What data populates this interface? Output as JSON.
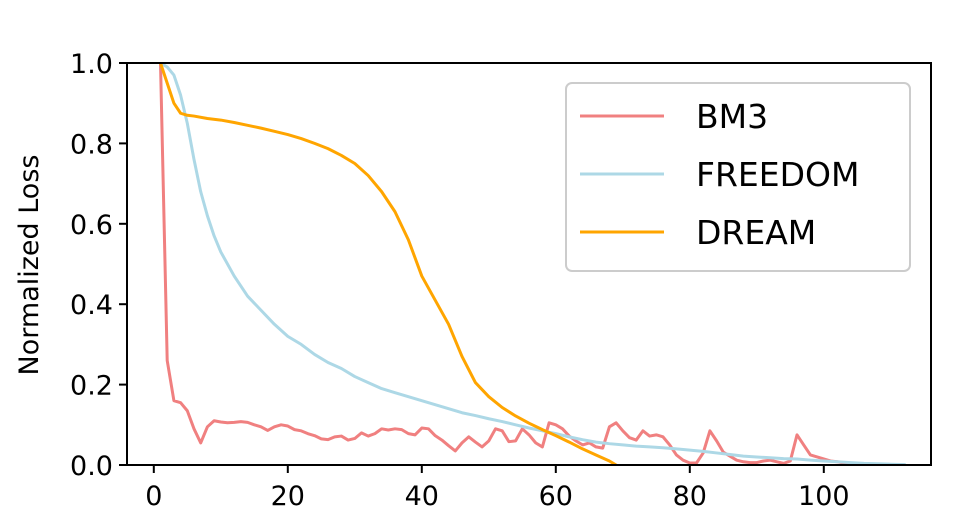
{
  "colors": {
    "BM3": "#f08080",
    "FREEDOM": "#add8e6",
    "DREAM": "#ffa500",
    "axes": "#000000",
    "legend_border": "#cccccc"
  },
  "chart_data": {
    "type": "line",
    "xlabel": "",
    "ylabel": "Normalized Loss",
    "xlim": [
      -4,
      116
    ],
    "ylim": [
      0,
      1.0
    ],
    "xticks": [
      0,
      20,
      40,
      60,
      80,
      100
    ],
    "yticks": [
      "0.0",
      "0.2",
      "0.4",
      "0.6",
      "0.8",
      "1.0"
    ],
    "legend_position": "top-right",
    "grid": false,
    "series": [
      {
        "name": "BM3",
        "color": "#f08080",
        "x": [
          1,
          2,
          3,
          4,
          5,
          6,
          7,
          8,
          9,
          10,
          11,
          12,
          13,
          14,
          15,
          16,
          17,
          18,
          19,
          20,
          21,
          22,
          23,
          24,
          25,
          26,
          27,
          28,
          29,
          30,
          31,
          32,
          33,
          34,
          35,
          36,
          37,
          38,
          39,
          40,
          41,
          42,
          43,
          44,
          45,
          46,
          47,
          48,
          49,
          50,
          51,
          52,
          53,
          54,
          55,
          56,
          57,
          58,
          59,
          60,
          61,
          62,
          63,
          64,
          65,
          66,
          67,
          68,
          69,
          70,
          71,
          72,
          73,
          74,
          75,
          76,
          77,
          78,
          79,
          80,
          81,
          82,
          83,
          84,
          85,
          86,
          87,
          88,
          89,
          90,
          91,
          92,
          93,
          94,
          95,
          96,
          97,
          98,
          99,
          100,
          101,
          102,
          103,
          104,
          105
        ],
        "y": [
          1.0,
          0.26,
          0.16,
          0.155,
          0.135,
          0.09,
          0.055,
          0.095,
          0.11,
          0.107,
          0.105,
          0.106,
          0.108,
          0.106,
          0.1,
          0.095,
          0.086,
          0.095,
          0.1,
          0.097,
          0.088,
          0.085,
          0.078,
          0.073,
          0.065,
          0.063,
          0.07,
          0.072,
          0.062,
          0.066,
          0.08,
          0.072,
          0.078,
          0.09,
          0.087,
          0.09,
          0.088,
          0.078,
          0.075,
          0.092,
          0.09,
          0.073,
          0.062,
          0.048,
          0.035,
          0.055,
          0.07,
          0.057,
          0.045,
          0.06,
          0.09,
          0.085,
          0.058,
          0.06,
          0.09,
          0.075,
          0.055,
          0.045,
          0.105,
          0.1,
          0.09,
          0.072,
          0.06,
          0.05,
          0.055,
          0.045,
          0.042,
          0.095,
          0.105,
          0.085,
          0.068,
          0.062,
          0.085,
          0.072,
          0.075,
          0.07,
          0.05,
          0.025,
          0.012,
          0.005,
          0.005,
          0.03,
          0.085,
          0.06,
          0.032,
          0.022,
          0.012,
          0.008,
          0.006,
          0.006,
          0.01,
          0.012,
          0.008,
          0.004,
          0.01,
          0.075,
          0.05,
          0.025,
          0.02,
          0.015,
          0.01,
          0.008,
          0.005,
          0.003,
          0.0
        ]
      },
      {
        "name": "FREEDOM",
        "color": "#add8e6",
        "x": [
          1,
          2,
          3,
          4,
          5,
          6,
          7,
          8,
          9,
          10,
          12,
          14,
          16,
          18,
          20,
          22,
          24,
          26,
          28,
          30,
          32,
          34,
          36,
          38,
          40,
          42,
          44,
          46,
          48,
          50,
          52,
          54,
          56,
          58,
          60,
          62,
          64,
          66,
          68,
          70,
          72,
          74,
          76,
          78,
          80,
          82,
          84,
          86,
          88,
          90,
          92,
          94,
          96,
          98,
          100,
          102,
          104,
          106,
          108,
          110,
          112
        ],
        "y": [
          1.0,
          0.99,
          0.97,
          0.92,
          0.85,
          0.76,
          0.68,
          0.62,
          0.57,
          0.53,
          0.47,
          0.42,
          0.385,
          0.35,
          0.32,
          0.3,
          0.275,
          0.255,
          0.24,
          0.22,
          0.205,
          0.19,
          0.18,
          0.17,
          0.16,
          0.15,
          0.14,
          0.13,
          0.123,
          0.115,
          0.108,
          0.1,
          0.092,
          0.085,
          0.078,
          0.07,
          0.063,
          0.057,
          0.053,
          0.05,
          0.047,
          0.045,
          0.043,
          0.04,
          0.037,
          0.034,
          0.03,
          0.026,
          0.022,
          0.02,
          0.018,
          0.016,
          0.015,
          0.012,
          0.01,
          0.008,
          0.006,
          0.004,
          0.003,
          0.002,
          0.001
        ]
      },
      {
        "name": "DREAM",
        "color": "#ffa500",
        "x": [
          1,
          2,
          3,
          4,
          5,
          6,
          8,
          10,
          12,
          14,
          16,
          18,
          20,
          22,
          24,
          26,
          28,
          30,
          32,
          34,
          36,
          38,
          40,
          42,
          44,
          46,
          48,
          50,
          52,
          54,
          56,
          58,
          60,
          62,
          64,
          66,
          68,
          69
        ],
        "y": [
          1.0,
          0.95,
          0.9,
          0.875,
          0.87,
          0.868,
          0.862,
          0.858,
          0.852,
          0.845,
          0.838,
          0.83,
          0.822,
          0.812,
          0.8,
          0.787,
          0.77,
          0.75,
          0.72,
          0.68,
          0.63,
          0.56,
          0.47,
          0.41,
          0.35,
          0.27,
          0.205,
          0.17,
          0.143,
          0.122,
          0.104,
          0.088,
          0.073,
          0.057,
          0.04,
          0.025,
          0.01,
          0.0
        ]
      }
    ]
  }
}
